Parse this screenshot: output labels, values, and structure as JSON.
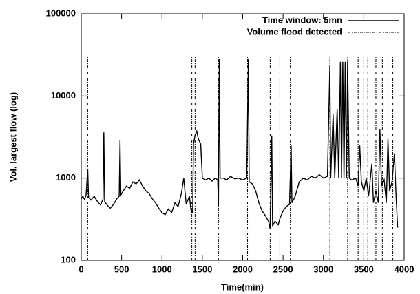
{
  "chart_data": {
    "type": "line",
    "xlabel": "Time(min)",
    "ylabel": "Vol. largest flow (log)",
    "log_y": true,
    "xlim": [
      0,
      4000
    ],
    "xticks": [
      0,
      500,
      1000,
      1500,
      2000,
      2500,
      3000,
      3500,
      4000
    ],
    "ylim": [
      100,
      100000
    ],
    "yticks": [
      100,
      1000,
      10000,
      100000
    ],
    "legend": "top-right",
    "series": [
      {
        "name": "Time window: 5mn",
        "color": "#000000",
        "style": "solid",
        "x": [
          0,
          20,
          40,
          60,
          80,
          90,
          120,
          160,
          200,
          240,
          270,
          280,
          290,
          320,
          360,
          400,
          440,
          470,
          480,
          490,
          520,
          560,
          600,
          640,
          680,
          720,
          760,
          800,
          840,
          880,
          920,
          960,
          1000,
          1040,
          1080,
          1120,
          1160,
          1200,
          1240,
          1270,
          1300,
          1340,
          1360,
          1380,
          1390,
          1410,
          1430,
          1450,
          1480,
          1500,
          1540,
          1580,
          1620,
          1660,
          1690,
          1700,
          1710,
          1720,
          1760,
          1800,
          1850,
          1900,
          1950,
          2000,
          2050,
          2070,
          2080,
          2120,
          2160,
          2200,
          2240,
          2280,
          2320,
          2340,
          2360,
          2370,
          2400,
          2440,
          2460,
          2500,
          2540,
          2580,
          2600,
          2610,
          2650,
          2700,
          2750,
          2800,
          2850,
          2900,
          2950,
          3000,
          3050,
          3080,
          3090,
          3120,
          3140,
          3170,
          3190,
          3210,
          3225,
          3240,
          3255,
          3270,
          3285,
          3300,
          3320,
          3350,
          3400,
          3430,
          3450,
          3470,
          3500,
          3530,
          3560,
          3600,
          3620,
          3650,
          3680,
          3700,
          3720,
          3750,
          3780,
          3800,
          3820,
          3850,
          3880,
          3900,
          3920
        ],
        "values": [
          560,
          600,
          550,
          620,
          1300,
          580,
          540,
          600,
          520,
          470,
          560,
          3600,
          520,
          470,
          430,
          480,
          560,
          600,
          2900,
          620,
          700,
          800,
          750,
          900,
          850,
          950,
          800,
          700,
          650,
          560,
          500,
          430,
          380,
          360,
          420,
          380,
          500,
          450,
          650,
          1000,
          480,
          600,
          400,
          380,
          2600,
          3300,
          3800,
          3000,
          2600,
          1000,
          950,
          1000,
          920,
          1000,
          950,
          450,
          28000,
          1000,
          1000,
          950,
          1050,
          980,
          1000,
          950,
          1000,
          28000,
          900,
          850,
          700,
          500,
          400,
          350,
          300,
          240,
          3300,
          260,
          300,
          270,
          320,
          400,
          450,
          480,
          2500,
          500,
          600,
          900,
          1000,
          950,
          1050,
          1000,
          1100,
          1000,
          1050,
          24000,
          1000,
          6000,
          1000,
          7000,
          1000,
          26000,
          1000,
          26000,
          1000,
          26000,
          1000,
          26000,
          1000,
          950,
          1000,
          800,
          2500,
          900,
          700,
          1000,
          600,
          1500,
          500,
          700,
          500,
          3900,
          800,
          1000,
          500,
          3000,
          700,
          900,
          2000,
          600,
          250
        ]
      },
      {
        "name": "Volume flood detected",
        "color": "#000000",
        "style": "dash-dot",
        "x": [
          80,
          1370,
          1410,
          1700,
          2060,
          2340,
          2460,
          2590,
          3080,
          3300,
          3430,
          3500,
          3550,
          3650,
          3730,
          3800,
          3860
        ],
        "values": [
          30000,
          30000,
          30000,
          30000,
          30000,
          30000,
          30000,
          30000,
          30000,
          30000,
          30000,
          30000,
          30000,
          30000,
          30000,
          30000,
          30000
        ]
      }
    ]
  }
}
